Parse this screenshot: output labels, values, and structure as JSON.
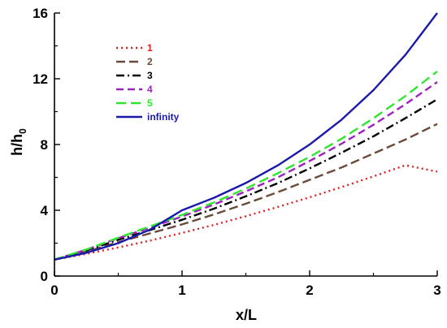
{
  "chart_data": {
    "type": "line",
    "xlabel": "x/L",
    "ylabel": {
      "main": "h/h",
      "sub": "0"
    },
    "xlim": [
      0,
      3
    ],
    "ylim": [
      0,
      16
    ],
    "x_ticks": [
      0,
      1,
      2,
      3
    ],
    "x_tick_labels": [
      "0",
      "1",
      "2",
      "3"
    ],
    "y_ticks": [
      0,
      4,
      8,
      12,
      16
    ],
    "y_tick_labels": [
      "0",
      "4",
      "8",
      "12",
      "16"
    ],
    "grid": false,
    "legend_position": "top-left",
    "x": [
      0,
      0.25,
      0.5,
      0.75,
      1,
      1.25,
      1.5,
      1.75,
      2,
      2.25,
      2.5,
      2.75,
      3
    ],
    "series": [
      {
        "name": "1",
        "color": "#e02020",
        "dash": "2,4",
        "values": [
          1.0,
          1.35,
          1.74,
          2.16,
          2.62,
          3.11,
          3.64,
          4.2,
          4.79,
          5.41,
          6.06,
          6.74,
          6.35
        ]
      },
      {
        "name": "2",
        "color": "#6b4a3a",
        "dash": "11,5",
        "values": [
          1.0,
          1.48,
          2.06,
          2.6,
          3.14,
          3.75,
          4.4,
          5.1,
          5.85,
          6.6,
          7.45,
          8.3,
          9.25
        ]
      },
      {
        "name": "3",
        "color": "#000000",
        "dash": "10,4,2,4",
        "values": [
          1.0,
          1.55,
          2.2,
          2.8,
          3.42,
          4.1,
          4.85,
          5.65,
          6.55,
          7.5,
          8.5,
          9.6,
          10.75
        ]
      },
      {
        "name": "4",
        "color": "#a020c0",
        "dash": "9,5",
        "values": [
          1.0,
          1.6,
          2.3,
          2.95,
          3.62,
          4.35,
          5.15,
          6.0,
          7.0,
          8.05,
          9.2,
          10.45,
          11.8
        ]
      },
      {
        "name": "5",
        "color": "#2ee62e",
        "dash": "12,6",
        "values": [
          1.0,
          1.62,
          2.33,
          3.02,
          3.72,
          4.48,
          5.32,
          6.25,
          7.25,
          8.35,
          9.6,
          10.95,
          12.45
        ]
      },
      {
        "name": "infinity",
        "color": "#1a1aaa",
        "dash": "",
        "values": [
          1.0,
          1.41,
          2.0,
          2.83,
          4.0,
          4.76,
          5.66,
          6.73,
          8.0,
          9.51,
          11.31,
          13.45,
          16.0
        ]
      }
    ]
  }
}
